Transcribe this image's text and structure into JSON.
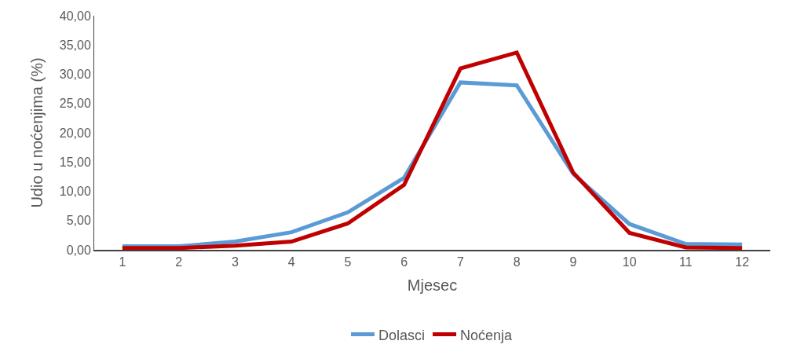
{
  "chart_data": {
    "type": "line",
    "xlabel": "Mjesec",
    "ylabel": "Udio u noćenjima (%)",
    "x": [
      1,
      2,
      3,
      4,
      5,
      6,
      7,
      8,
      9,
      10,
      11,
      12
    ],
    "xlim": [
      0.5,
      12.5
    ],
    "xticks": [
      1,
      2,
      3,
      4,
      5,
      6,
      7,
      8,
      9,
      10,
      11,
      12
    ],
    "series": [
      {
        "name": "Dolasci",
        "color": "#5b9bd5",
        "values": [
          0.6,
          0.6,
          1.4,
          3.0,
          6.4,
          12.3,
          28.6,
          28.1,
          13.0,
          4.4,
          1.0,
          0.9
        ]
      },
      {
        "name": "Noćenja",
        "color": "#c00000",
        "values": [
          0.3,
          0.3,
          0.7,
          1.4,
          4.5,
          11.1,
          31.0,
          33.7,
          13.2,
          2.9,
          0.4,
          0.3
        ]
      }
    ],
    "ylim": [
      0,
      40
    ],
    "yticks": [
      {
        "value": 0,
        "label": "0,00"
      },
      {
        "value": 5,
        "label": "5,00"
      },
      {
        "value": 10,
        "label": "10,00"
      },
      {
        "value": 15,
        "label": "15,00"
      },
      {
        "value": 20,
        "label": "20,00"
      },
      {
        "value": 25,
        "label": "25,00"
      },
      {
        "value": 30,
        "label": "30,00"
      },
      {
        "value": 35,
        "label": "35,00"
      },
      {
        "value": 40,
        "label": "40,00"
      }
    ],
    "grid": false,
    "legend": "bottom",
    "marker": "none",
    "line_style": "solid"
  }
}
